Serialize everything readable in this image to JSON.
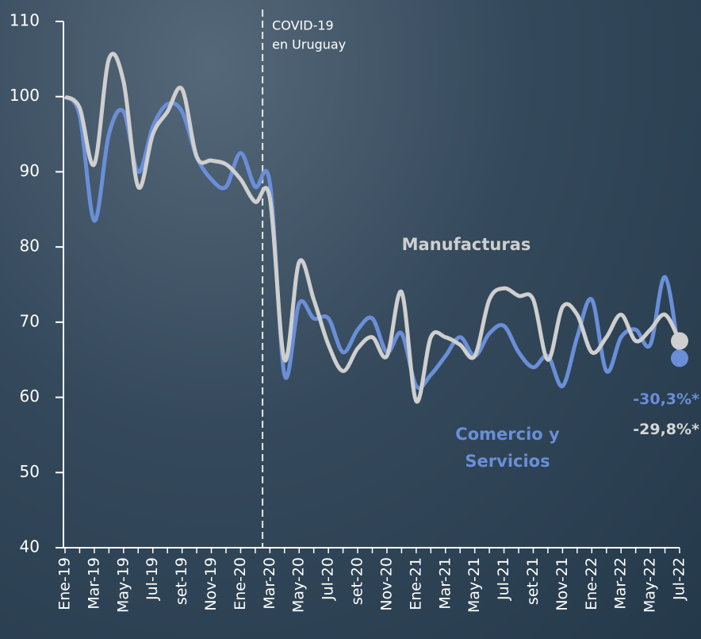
{
  "chart_data": {
    "type": "line",
    "categories": [
      "Ene-19",
      null,
      "Mar-19",
      null,
      "May-19",
      null,
      "Jul-19",
      null,
      "set-19",
      null,
      "Nov-19",
      null,
      "Ene-20",
      null,
      "Mar-20",
      null,
      "May-20",
      null,
      "Jul-20",
      null,
      "set-20",
      null,
      "Nov-20",
      null,
      "Ene-21",
      null,
      "Mar-21",
      null,
      "May-21",
      null,
      "Jul-21",
      null,
      "set-21",
      null,
      "Nov-21",
      null,
      "Ene-22",
      null,
      "Mar-22",
      null,
      "May-22",
      null,
      "Jul-22"
    ],
    "series": [
      {
        "name": "Comercio y Servicios",
        "color": "#6a8fd8",
        "values": [
          100,
          97.5,
          83.5,
          95,
          98,
          90,
          96,
          99,
          98,
          92,
          89,
          88,
          92.5,
          88,
          88.5,
          63,
          72.5,
          70.5,
          70.5,
          66,
          69,
          70.5,
          66,
          68.5,
          61.5,
          63,
          65.5,
          68,
          65.5,
          68.5,
          69.5,
          66,
          64,
          65.5,
          61.5,
          68,
          73,
          63.5,
          68,
          69,
          67,
          76,
          65.2
        ]
      },
      {
        "name": "Manufacturas",
        "color": "#cfcfcf",
        "values": [
          100,
          98.5,
          91,
          105,
          102,
          88,
          95,
          98,
          101,
          92,
          91.5,
          91,
          89,
          86,
          86.5,
          65,
          78,
          73,
          67,
          63.5,
          66.5,
          68,
          65.5,
          74,
          59.5,
          68,
          68,
          67,
          65.5,
          73,
          74.5,
          73.5,
          73,
          65,
          72,
          71,
          66,
          68,
          71,
          67.5,
          69,
          71,
          67.5
        ]
      }
    ],
    "annotations": {
      "covid": [
        "COVID-19",
        "en Uruguay"
      ],
      "change_0": "-30,3%*",
      "change_1": "-29,8%*"
    },
    "ylim": [
      40,
      110
    ],
    "yticks": [
      40,
      50,
      60,
      70,
      80,
      90,
      100,
      110
    ]
  }
}
